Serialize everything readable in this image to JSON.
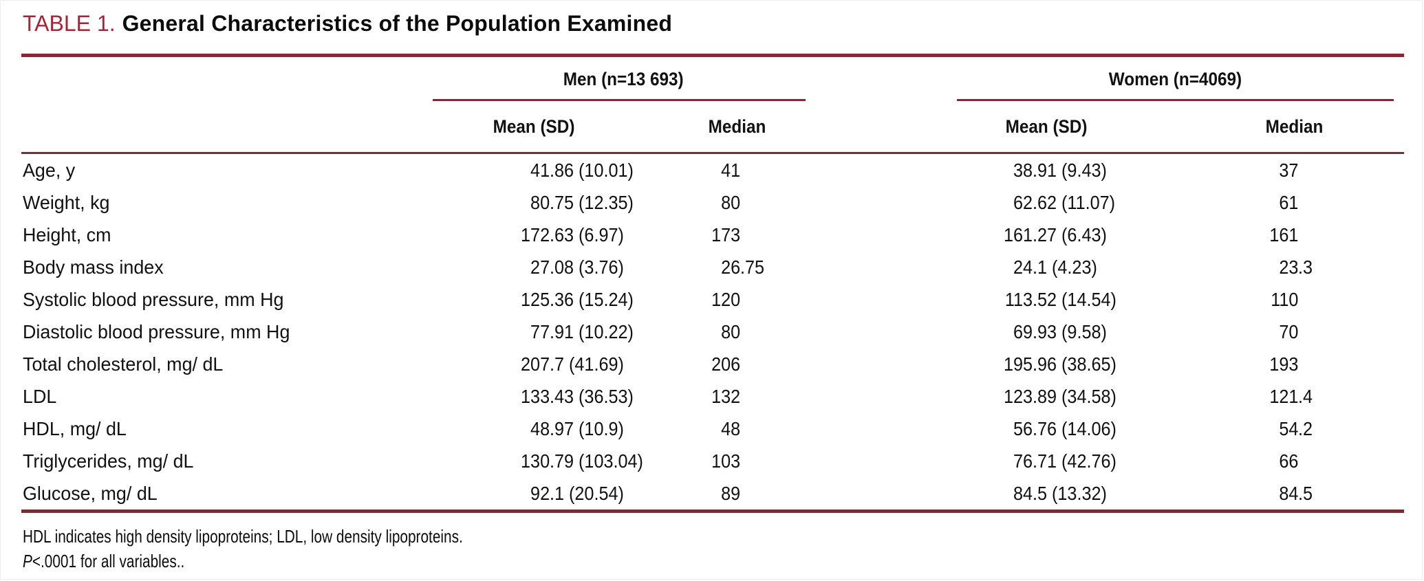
{
  "colors": {
    "title_red": "#A32638",
    "rule_maroon": "#852835"
  },
  "title": {
    "label": "TABLE 1.",
    "text": "General Characteristics of the Population Examined"
  },
  "table": {
    "groups": [
      {
        "label": "Men (n=13 693)"
      },
      {
        "label": "Women (n=4069)"
      }
    ],
    "subheaders": {
      "men_mean_label": "Mean (SD)",
      "men_median_label": "Median",
      "women_mean_label": "Mean (SD)",
      "women_median_label": "Median"
    },
    "rows": [
      {
        "label": "Age, y",
        "men_mean": "41.86 (10.01)",
        "men_median": "41",
        "women_mean": "38.91 (9.43)",
        "women_median": "37"
      },
      {
        "label": "Weight, kg",
        "men_mean": "80.75 (12.35)",
        "men_median": "80",
        "women_mean": "62.62 (11.07)",
        "women_median": "61"
      },
      {
        "label": "Height, cm",
        "men_mean": "172.63 (6.97)",
        "men_median": "173",
        "women_mean": "161.27 (6.43)",
        "women_median": "161"
      },
      {
        "label": "Body mass index",
        "men_mean": "27.08 (3.76)",
        "men_median": "26.75",
        "women_mean": "24.1 (4.23)",
        "women_median": "23.3"
      },
      {
        "label": "Systolic blood pressure, mm Hg",
        "men_mean": "125.36 (15.24)",
        "men_median": "120",
        "women_mean": "113.52 (14.54)",
        "women_median": "110"
      },
      {
        "label": "Diastolic blood pressure, mm Hg",
        "men_mean": "77.91 (10.22)",
        "men_median": "80",
        "women_mean": "69.93 (9.58)",
        "women_median": "70"
      },
      {
        "label": "Total cholesterol, mg/ dL",
        "men_mean": "207.7 (41.69)",
        "men_median": "206",
        "women_mean": "195.96 (38.65)",
        "women_median": "193"
      },
      {
        "label": "LDL",
        "men_mean": "133.43 (36.53)",
        "men_median": "132",
        "women_mean": "123.89 (34.58)",
        "women_median": "121.4"
      },
      {
        "label": "HDL, mg/ dL",
        "men_mean": "48.97 (10.9)",
        "men_median": "48",
        "women_mean": "56.76 (14.06)",
        "women_median": "54.2"
      },
      {
        "label": "Triglycerides, mg/ dL",
        "men_mean": "130.79 (103.04)",
        "men_median": "103",
        "women_mean": "76.71 (42.76)",
        "women_median": "66"
      },
      {
        "label": "Glucose, mg/ dL",
        "men_mean": "92.1 (20.54)",
        "men_median": "89",
        "women_mean": "84.5 (13.32)",
        "women_median": "84.5"
      }
    ]
  },
  "footnotes": {
    "line1": "HDL indicates high density lipoproteins; LDL, low density lipoproteins.",
    "line2_prefix": "P",
    "line2_rest": "<.0001 for all variables.."
  }
}
